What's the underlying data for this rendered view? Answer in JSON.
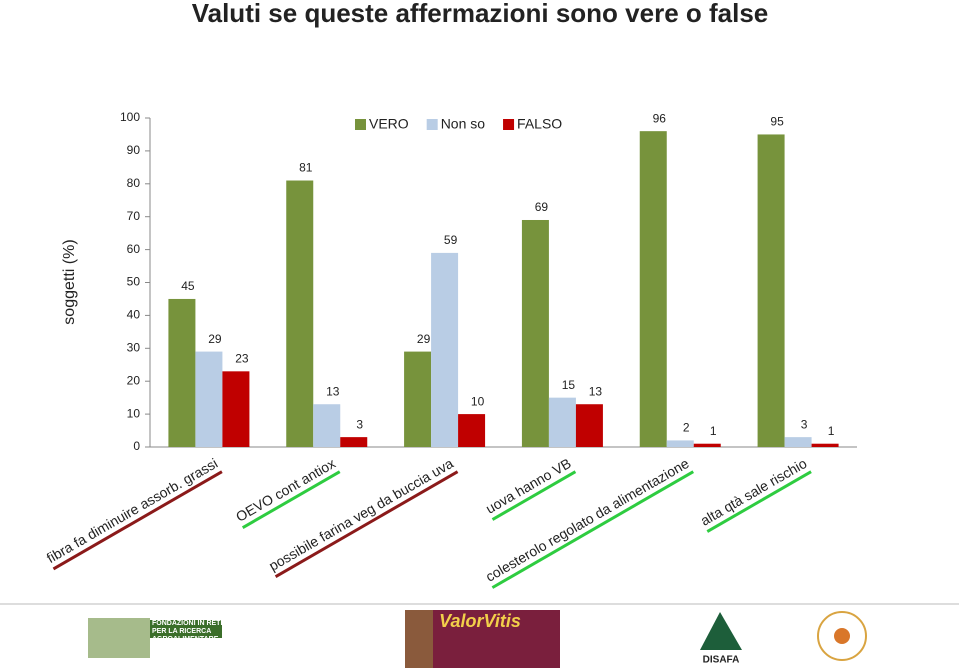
{
  "chart_data": {
    "type": "bar",
    "title": "Valuti se queste affermazioni sono vere o false",
    "y_label": "soggetti (%)",
    "categories": [
      "fibra fa diminuire assorb. grassi",
      "OEVO cont antiox",
      "possibile farina veg da buccia uva",
      "uova hanno VB",
      "colesterolo regolato da alimentazione",
      "alta qtà sale rischio"
    ],
    "label_underline_colors": [
      "#8b1a1a",
      "#2ecc40",
      "#8b1a1a",
      "#2ecc40",
      "#2ecc40",
      "#2ecc40"
    ],
    "series": [
      {
        "name": "VERO",
        "color": "#77933c",
        "values": [
          45,
          81,
          29,
          69,
          96,
          95
        ]
      },
      {
        "name": "Non so",
        "color": "#b9cde5",
        "values": [
          29,
          13,
          59,
          15,
          2,
          3
        ]
      },
      {
        "name": "FALSO",
        "color": "#c00000",
        "values": [
          23,
          3,
          10,
          13,
          1,
          1
        ]
      }
    ],
    "ylim": [
      0,
      100
    ],
    "yticks": [
      0,
      10,
      20,
      30,
      40,
      50,
      60,
      70,
      80,
      90,
      100
    ],
    "legend": "top"
  },
  "logos": [
    "FONDAZIONI IN RETE PER LA RICERCA AGROALIMENTARE",
    "ValorVitis",
    "DISAFA"
  ]
}
